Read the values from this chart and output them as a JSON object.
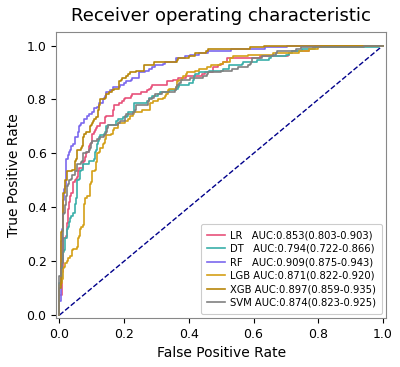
{
  "title": "Receiver operating characteristic",
  "xlabel": "False Positive Rate",
  "ylabel": "True Positive Rate",
  "diagonal_color": "#00008B",
  "curves": [
    {
      "label": "LR   AUC:0.853(0.803-0.903)",
      "color": "#e8527a",
      "auc": 0.853,
      "seed": 42,
      "n_steps": 120
    },
    {
      "label": "DT   AUC:0.794(0.722-0.866)",
      "color": "#3aafa9",
      "auc": 0.794,
      "seed": 10,
      "n_steps": 40
    },
    {
      "label": "RF   AUC:0.909(0.875-0.943)",
      "color": "#7b68ee",
      "auc": 0.909,
      "seed": 77,
      "n_steps": 120
    },
    {
      "label": "LGB AUC:0.871(0.822-0.920)",
      "color": "#d4a017",
      "auc": 0.871,
      "seed": 55,
      "n_steps": 120
    },
    {
      "label": "XGB AUC:0.897(0.859-0.935)",
      "color": "#b8860b",
      "auc": 0.897,
      "seed": 33,
      "n_steps": 120
    },
    {
      "label": "SVM AUC:0.874(0.823-0.925)",
      "color": "#808080",
      "auc": 0.874,
      "seed": 99,
      "n_steps": 120
    }
  ],
  "figsize": [
    4.0,
    3.67
  ],
  "dpi": 100,
  "title_fontsize": 13,
  "axis_label_fontsize": 10,
  "tick_fontsize": 9,
  "legend_fontsize": 7.2,
  "bg_color": "#f8f8f8"
}
